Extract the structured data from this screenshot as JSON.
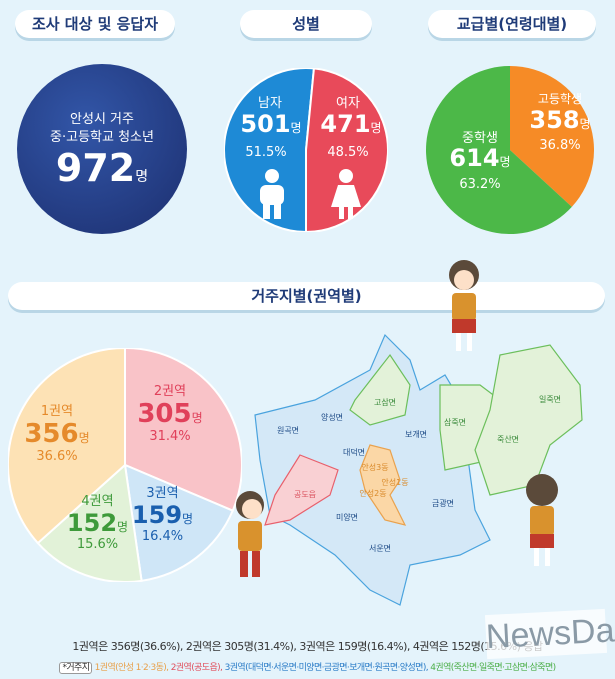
{
  "sections": {
    "respondents": "조사 대상 및 응답자",
    "gender": "성별",
    "grade": "교급별(연령대별)",
    "region": "거주지별(권역별)"
  },
  "respondents": {
    "line1": "안성시 거주",
    "line2": "중·고등학교 청소년",
    "count": "972",
    "unit": "명"
  },
  "gender": {
    "male": {
      "label": "남자",
      "count": "501",
      "unit": "명",
      "pct": "51.5%"
    },
    "female": {
      "label": "여자",
      "count": "471",
      "unit": "명",
      "pct": "48.5%"
    }
  },
  "chart_data": [
    {
      "type": "pie",
      "title": "성별",
      "categories": [
        "남자",
        "여자"
      ],
      "values": [
        501,
        471
      ],
      "percent": [
        51.5,
        48.5
      ],
      "colors": [
        "#1e8ad6",
        "#e84a5a"
      ]
    },
    {
      "type": "pie",
      "title": "교급별(연령대별)",
      "categories": [
        "고등학생",
        "중학생"
      ],
      "values": [
        358,
        614
      ],
      "percent": [
        36.8,
        63.2
      ],
      "colors": [
        "#f68b26",
        "#4cb848"
      ]
    },
    {
      "type": "pie",
      "title": "거주지별(권역별)",
      "categories": [
        "2권역",
        "3권역",
        "4권역",
        "1권역"
      ],
      "values": [
        305,
        159,
        152,
        356
      ],
      "percent": [
        31.4,
        16.4,
        15.6,
        36.6
      ],
      "colors": [
        "#f9c3c8",
        "#cfe6f7",
        "#e2f2d8",
        "#fde2b5"
      ]
    }
  ],
  "grade": {
    "high": {
      "label": "고등학생",
      "count": "358",
      "unit": "명",
      "pct": "36.8%"
    },
    "middle": {
      "label": "중학생",
      "count": "614",
      "unit": "명",
      "pct": "63.2%"
    }
  },
  "region": {
    "r1": {
      "label": "1권역",
      "count": "356",
      "unit": "명",
      "pct": "36.6%"
    },
    "r2": {
      "label": "2권역",
      "count": "305",
      "unit": "명",
      "pct": "31.4%"
    },
    "r3": {
      "label": "3권역",
      "count": "159",
      "unit": "명",
      "pct": "16.4%"
    },
    "r4": {
      "label": "4권역",
      "count": "152",
      "unit": "명",
      "pct": "15.6%"
    }
  },
  "map": {
    "labels": [
      "원곡면",
      "양성면",
      "고삼면",
      "보개면",
      "삼죽면",
      "일죽면",
      "죽산면",
      "대덕면",
      "안성3동",
      "안성1동",
      "안성2동",
      "공도읍",
      "미양면",
      "금광면",
      "서운면"
    ]
  },
  "footer": {
    "summary": "1권역은 356명(36.6%), 2권역은 305명(31.4%), 3권역은 159명(16.4%), 4권역은 152명(15.6%) 응답",
    "tag": "*거주지",
    "r1": "1권역(안성 1·2·3동),",
    "r2": "2권역(공도읍),",
    "r3": "3권역(대덕면·서운면·미양면·금광면·보개면·원곡면·양성면),",
    "r4": "4권역(죽산면·일죽면·고삼면·삼죽면)"
  },
  "watermark": "NewsDa"
}
